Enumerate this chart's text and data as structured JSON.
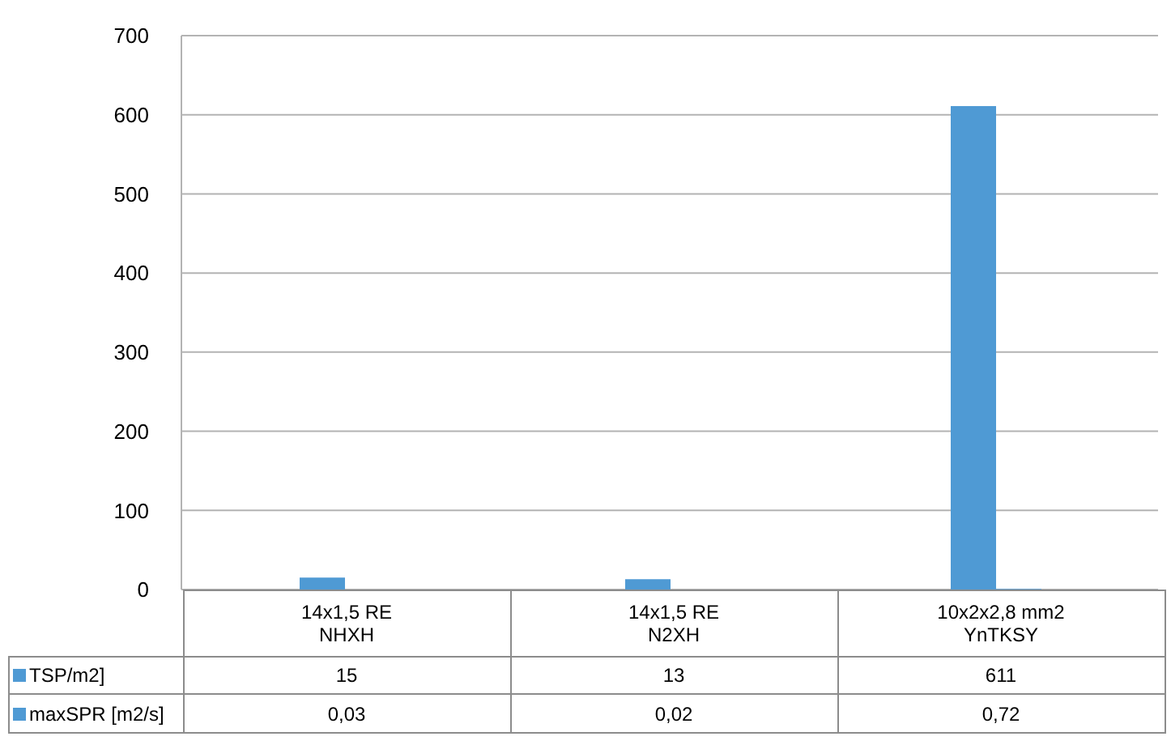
{
  "chart_data": {
    "type": "bar",
    "categories": [
      "14x1,5 RE\nNHXH",
      "14x1,5 RE\nN2XH",
      "10x2x2,8 mm2\nYnTKSY"
    ],
    "series": [
      {
        "name": "TSP/m2]",
        "color": "#4f9ad4",
        "values": [
          15,
          13,
          611
        ],
        "value_labels": [
          "15",
          "13",
          "611"
        ]
      },
      {
        "name": "maxSPR [m2/s]",
        "color": "#4f9ad4",
        "values": [
          0.03,
          0.02,
          0.72
        ],
        "value_labels": [
          "0,03",
          "0,02",
          "0,72"
        ]
      }
    ],
    "ylim": [
      0,
      700
    ],
    "yticks": [
      0,
      100,
      200,
      300,
      400,
      500,
      600,
      700
    ],
    "grid": "y",
    "legend": "bottom left"
  }
}
